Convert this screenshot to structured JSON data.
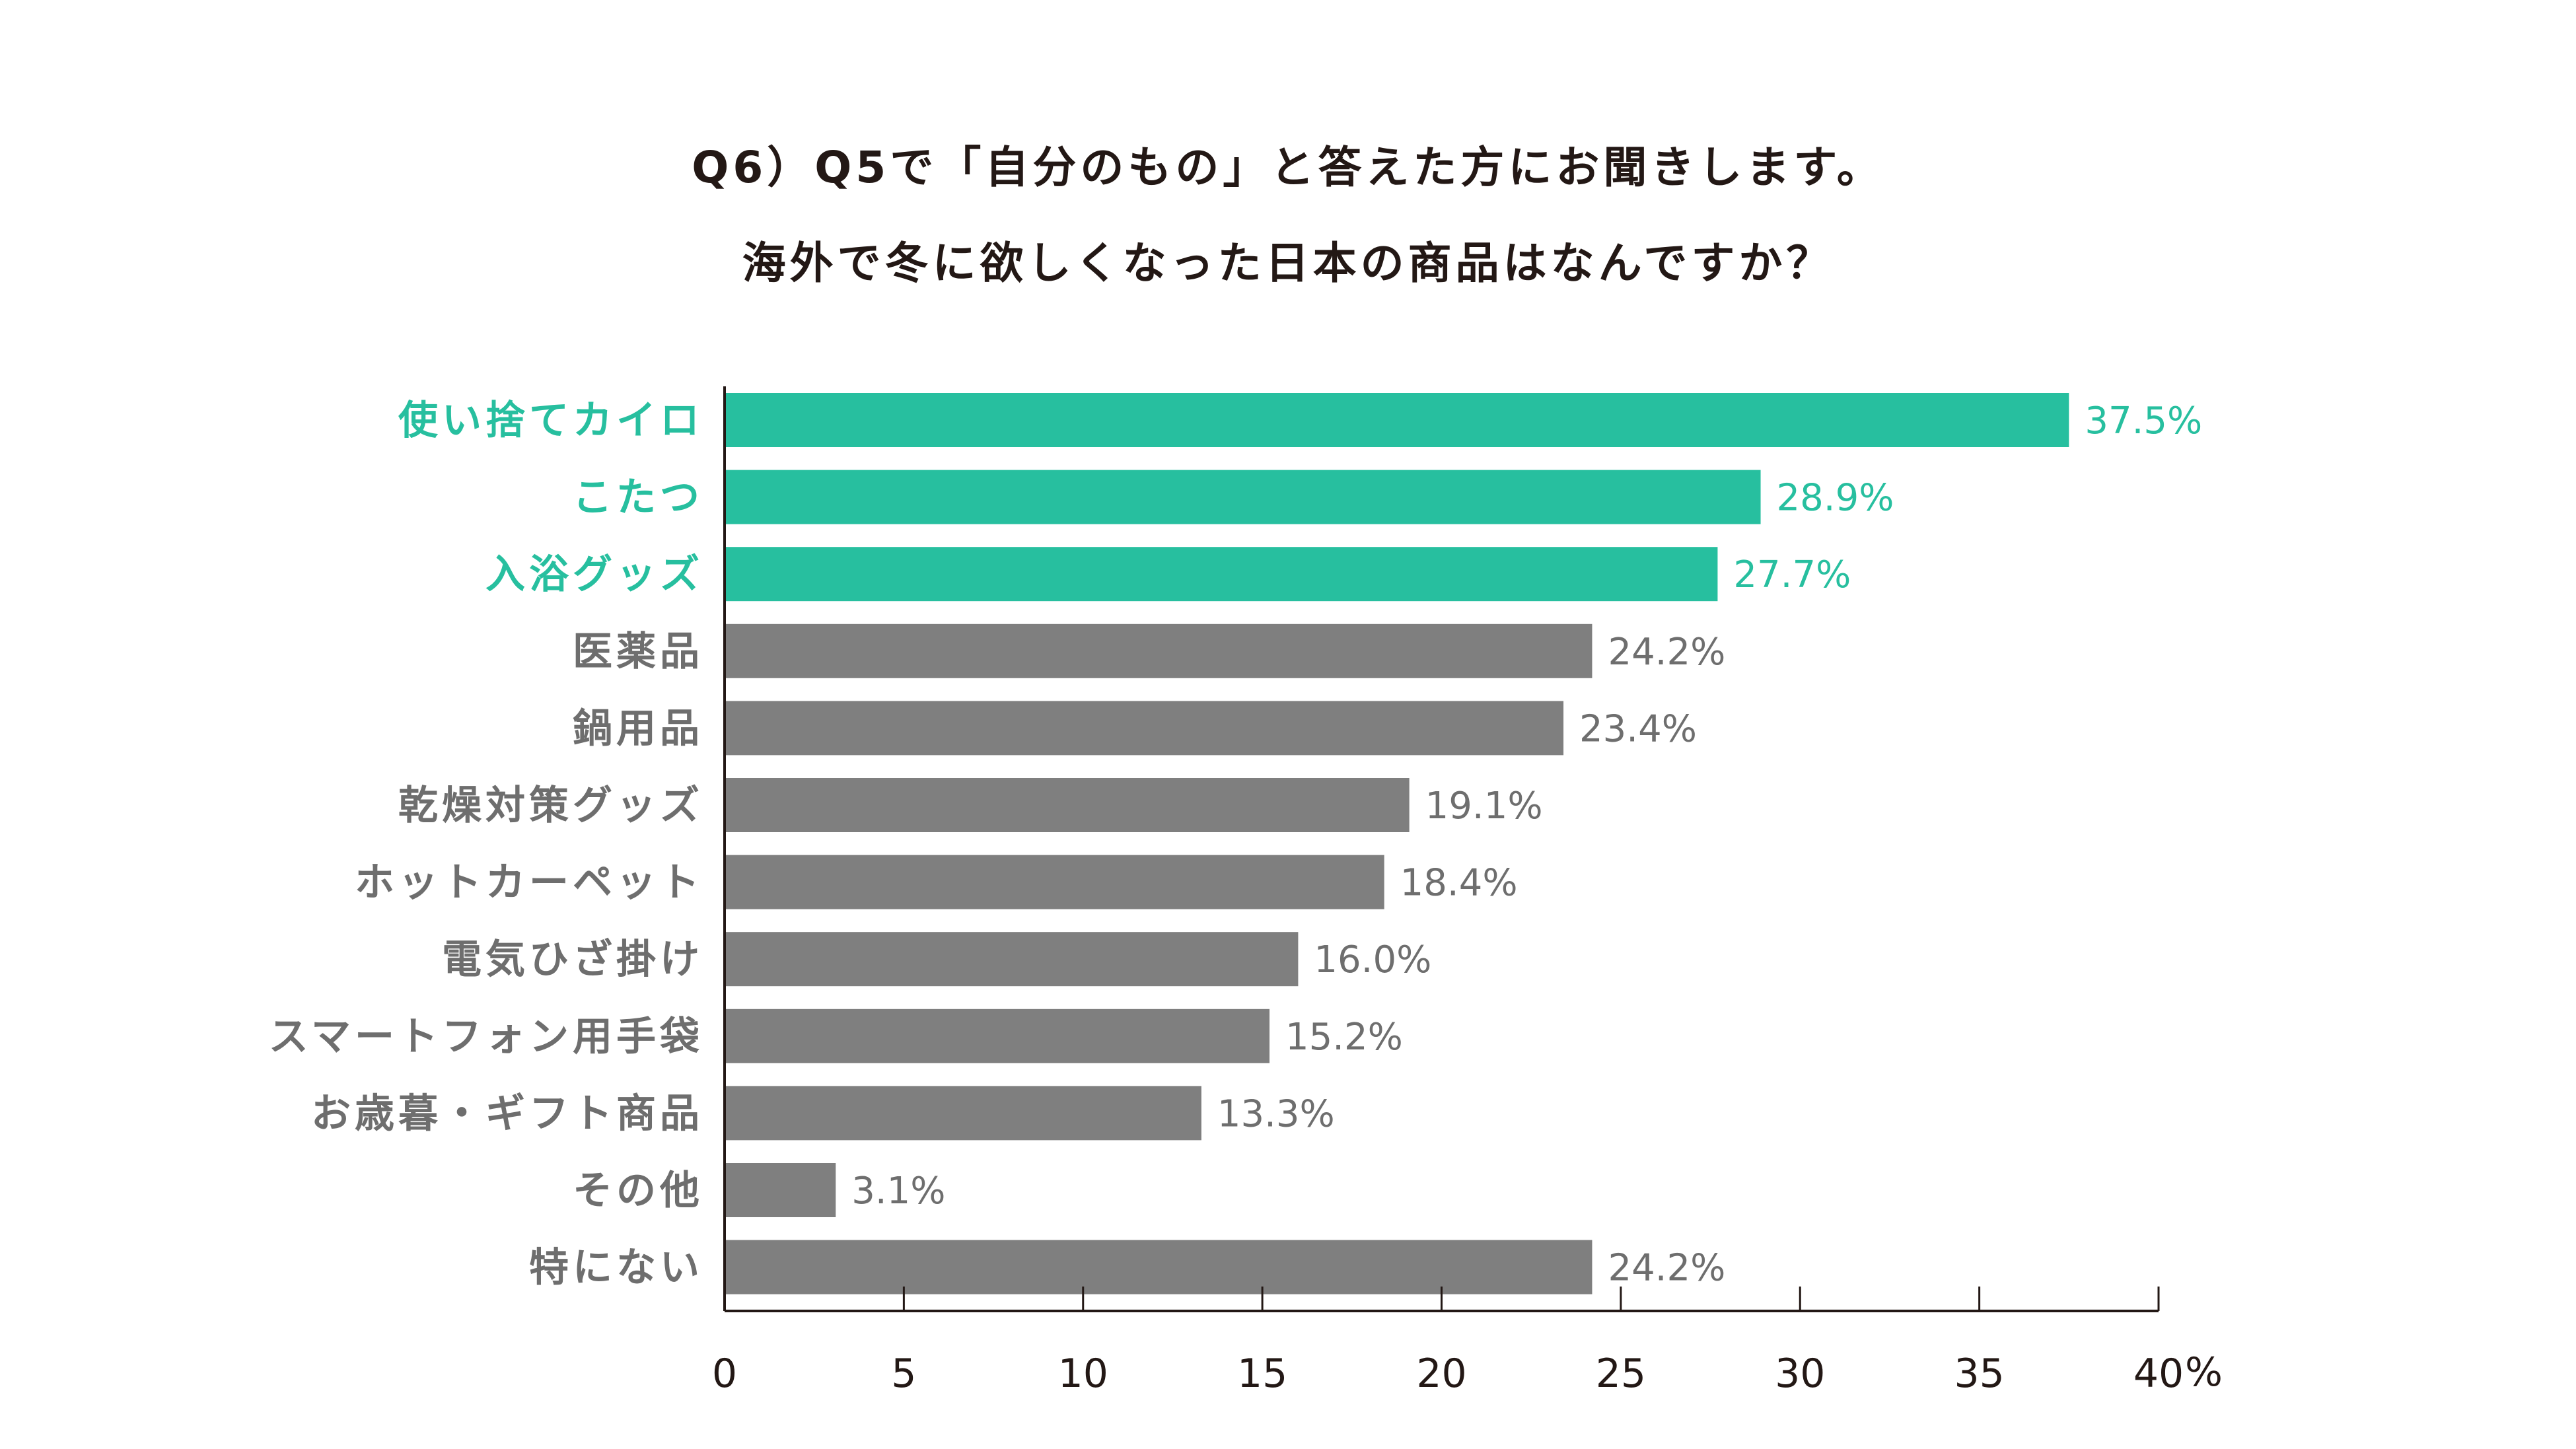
{
  "title": {
    "line1": "Q6）Q5で「自分のもの」と答えた方にお聞きします。",
    "line2": "海外で冬に欲しくなった日本の商品はなんですか？"
  },
  "colors": {
    "highlight": "#27bf9f",
    "normal": "#7f7f7f",
    "axis": "#231815",
    "label_normal": "#6e6e6e"
  },
  "chart_data": {
    "type": "bar",
    "orientation": "horizontal",
    "categories": [
      "使い捨てカイロ",
      "こたつ",
      "入浴グッズ",
      "医薬品",
      "鍋用品",
      "乾燥対策グッズ",
      "ホットカーペット",
      "電気ひざ掛け",
      "スマートフォン用手袋",
      "お歳暮・ギフト商品",
      "その他",
      "特にない"
    ],
    "values": [
      37.5,
      28.9,
      27.7,
      24.2,
      23.4,
      19.1,
      18.4,
      16.0,
      15.2,
      13.3,
      3.1,
      24.2
    ],
    "value_labels": [
      "37.5%",
      "28.9%",
      "27.7%",
      "24.2%",
      "23.4%",
      "19.1%",
      "18.4%",
      "16.0%",
      "15.2%",
      "13.3%",
      "3.1%",
      "24.2%"
    ],
    "highlighted": [
      true,
      true,
      true,
      false,
      false,
      false,
      false,
      false,
      false,
      false,
      false,
      false
    ],
    "xlim": [
      0,
      40
    ],
    "xticks": [
      0,
      5,
      10,
      15,
      20,
      25,
      30,
      35,
      40
    ],
    "xtick_labels": [
      "0",
      "5",
      "10",
      "15",
      "20",
      "25",
      "30",
      "35",
      "40"
    ],
    "x_unit": "%",
    "title": "Q6）Q5で「自分のもの」と答えた方にお聞きします。海外で冬に欲しくなった日本の商品はなんですか？",
    "xlabel": "",
    "ylabel": "",
    "grid": false,
    "legend": "none"
  }
}
